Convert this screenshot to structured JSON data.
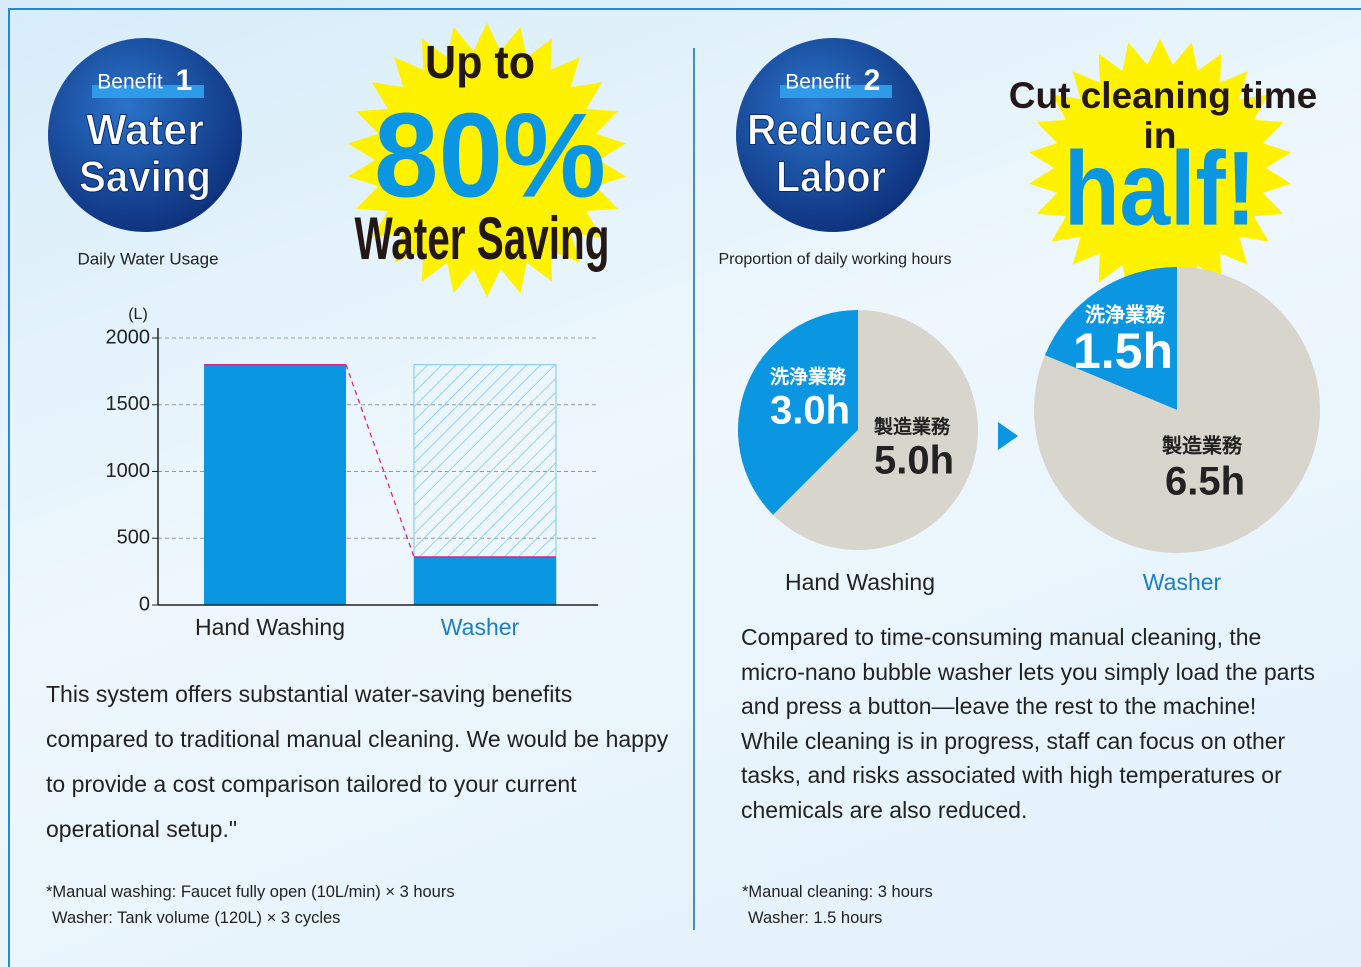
{
  "benefit1": {
    "badge": "Benefit",
    "number": "1",
    "title": [
      "Water",
      "Saving"
    ],
    "headline": [
      "Up to",
      "80%",
      "Water Saving"
    ],
    "body": "This system offers substantial water-saving benefits compared to traditional manual cleaning. We would be happy to provide a cost comparison tailored to your current operational setup.\"",
    "notes": [
      "*Manual washing: Faucet fully open (10L/min) × 3 hours",
      "Washer: Tank volume (120L) × 3 cycles"
    ]
  },
  "benefit2": {
    "badge": "Benefit",
    "number": "2",
    "title": [
      "Reduced",
      "Labor"
    ],
    "headline": [
      "Cut cleaning time",
      "in",
      "half!"
    ],
    "body": [
      "Compared to time-consuming manual cleaning, the micro-nano bubble washer lets you simply load the parts and press a button—leave the rest to the machine!",
      "While cleaning is in progress, staff can focus on other tasks, and risks associated with high temperatures or chemicals are also reduced."
    ],
    "notes": [
      "*Manual cleaning: 3 hours",
      "Washer: 1.5 hours"
    ]
  },
  "chart_data": [
    {
      "type": "bar",
      "subtitle": "Daily Water Usage",
      "y_unit": "(L)",
      "categories": [
        "Hand Washing",
        "Washer"
      ],
      "values": [
        1800,
        360
      ],
      "reference_values": [
        1800,
        1800
      ],
      "color": "#0a96e0",
      "category_colors": [
        "#222222",
        "#1a7fc8"
      ],
      "ylim": [
        0,
        2000
      ],
      "yticks": [
        0,
        500,
        1000,
        1500,
        2000
      ],
      "grid": true
    },
    {
      "type": "pie",
      "subtitle": "Proportion of daily working hours",
      "name": "Hand Washing",
      "name_color": "#222222",
      "categories": [
        "洗浄業務",
        "製造業務"
      ],
      "values": [
        3.0,
        5.0
      ],
      "value_labels": [
        "3.0h",
        "5.0h"
      ],
      "colors": [
        "#0a96e0",
        "#d8d5cc"
      ]
    },
    {
      "type": "pie",
      "name": "Washer",
      "name_color": "#1a7fc8",
      "categories": [
        "洗浄業務",
        "製造業務"
      ],
      "values": [
        1.5,
        6.5
      ],
      "value_labels": [
        "1.5h",
        "6.5h"
      ],
      "colors": [
        "#0a96e0",
        "#d8d5cc"
      ]
    }
  ]
}
